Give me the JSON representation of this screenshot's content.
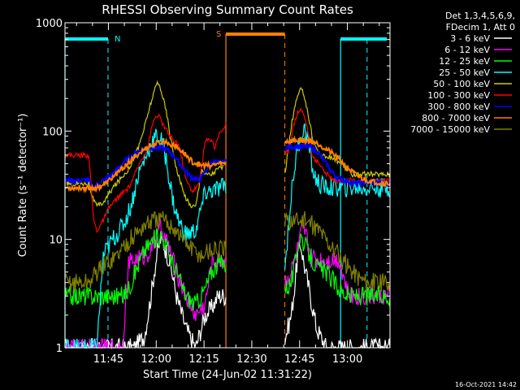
{
  "chart_data": {
    "type": "line",
    "title": "RHESSI Observing Summary Count Rates",
    "xlabel": "Start Time (24-Jun-02 11:31:22)",
    "ylabel": "Count Rate (s⁻¹ detector⁻¹)",
    "yscale": "log",
    "ylim": [
      1,
      1000
    ],
    "xlim_minutes": [
      0,
      102
    ],
    "y_ticks": [
      {
        "value": 1,
        "label": "1"
      },
      {
        "value": 10,
        "label": "10"
      },
      {
        "value": 100,
        "label": "100"
      },
      {
        "value": 1000,
        "label": "1000"
      }
    ],
    "x_ticks": [
      {
        "minute": 13.63,
        "label": "11:45"
      },
      {
        "minute": 28.63,
        "label": "12:00"
      },
      {
        "minute": 43.63,
        "label": "12:15"
      },
      {
        "minute": 58.63,
        "label": "12:30"
      },
      {
        "minute": 73.63,
        "label": "12:45"
      },
      {
        "minute": 88.63,
        "label": "13:00"
      }
    ],
    "legend_header": [
      "Det 1,3,4,5,6,9,",
      "FDecim 1, Att 0"
    ],
    "series": [
      {
        "name": "3 - 6 keV",
        "color": "#ffffff",
        "x": [
          0,
          10,
          18,
          22,
          25,
          27,
          28,
          29,
          30,
          31,
          33,
          35,
          38,
          41,
          44,
          46,
          48,
          50.5,
          69,
          71,
          72,
          73,
          74,
          75,
          77,
          79,
          82,
          86,
          89,
          95,
          100
        ],
        "y": [
          1,
          1,
          1,
          1,
          1.3,
          3,
          5,
          7.5,
          10,
          9,
          6,
          3,
          1.5,
          1,
          2,
          2.3,
          3,
          3,
          1.2,
          2,
          3.5,
          7,
          9,
          6,
          3,
          1.5,
          1,
          1,
          1,
          1,
          1
        ]
      },
      {
        "name": "6 - 12 keV",
        "color": "#ff00ff",
        "x": [
          0,
          18,
          20,
          22,
          25,
          27,
          29,
          30,
          31,
          33,
          35,
          38,
          41,
          44,
          46,
          48,
          50.5,
          69,
          71,
          72,
          73,
          74,
          75,
          76,
          77,
          79,
          82,
          86,
          89,
          95,
          100
        ],
        "y": [
          1,
          1,
          6,
          6.5,
          7,
          8,
          11,
          12.5,
          11,
          8,
          5,
          3,
          2,
          2.5,
          6,
          6.5,
          6.5,
          4,
          5,
          6.5,
          8,
          11,
          12,
          10,
          7,
          6.5,
          6.5,
          6.5,
          3,
          3,
          3
        ]
      },
      {
        "name": "12 - 25 keV",
        "color": "#00ff00",
        "x": [
          0,
          10,
          18,
          20,
          22,
          25,
          28,
          30,
          31,
          33,
          35,
          38,
          41,
          44,
          46,
          48,
          50.5,
          69,
          71,
          72,
          73,
          74,
          75,
          77,
          79,
          82,
          86,
          89,
          95,
          100
        ],
        "y": [
          3,
          3,
          3,
          3.5,
          5,
          8,
          10,
          11,
          10,
          7,
          5,
          3,
          2.5,
          3.5,
          5,
          6,
          6,
          3.5,
          4,
          5.5,
          9,
          11,
          9,
          7,
          5.5,
          5,
          3.5,
          3,
          3,
          3
        ]
      },
      {
        "name": "25 - 50 keV",
        "color": "#00ffff",
        "x": [
          0,
          10,
          12,
          13,
          15,
          17,
          19,
          21,
          23,
          25,
          27,
          28,
          29,
          30,
          31,
          32,
          33,
          34,
          35,
          36,
          38,
          41,
          44,
          46,
          48,
          50.5,
          69,
          70,
          71,
          72,
          73,
          74,
          75,
          76,
          77,
          78,
          79,
          80,
          82,
          85,
          88,
          91,
          94,
          97,
          100
        ],
        "y": [
          1,
          1,
          7,
          8,
          10,
          12,
          15,
          22,
          40,
          55,
          75,
          85,
          90,
          85,
          70,
          50,
          32,
          22,
          17,
          14,
          11,
          12,
          27,
          28,
          29,
          32,
          5,
          12,
          25,
          45,
          70,
          90,
          105,
          90,
          60,
          40,
          35,
          32,
          30,
          30,
          30,
          30,
          30,
          30,
          30
        ]
      },
      {
        "name": "50 - 100 keV",
        "color": "#cccc00",
        "x": [
          0,
          5,
          7.5,
          8.5,
          10,
          12,
          13,
          15,
          17,
          20,
          23,
          25,
          27,
          28,
          29,
          30,
          31,
          32,
          33,
          35,
          37,
          39,
          41,
          43,
          44,
          46,
          48,
          50.5,
          69,
          70,
          71,
          72,
          73,
          74,
          75,
          76,
          77,
          78,
          80,
          85,
          90,
          95,
          100
        ],
        "y": [
          33,
          33,
          33,
          25,
          20,
          22,
          24,
          30,
          35,
          45,
          70,
          110,
          185,
          230,
          280,
          250,
          190,
          140,
          90,
          45,
          28,
          21,
          20,
          45,
          40,
          40,
          45,
          48,
          40,
          65,
          110,
          160,
          210,
          240,
          220,
          160,
          110,
          80,
          60,
          55,
          40,
          40,
          40
        ]
      },
      {
        "name": "100 - 300 keV",
        "color": "#ff0000",
        "x": [
          0,
          5,
          7.5,
          9,
          10,
          12,
          14,
          17,
          20,
          22,
          24,
          26,
          27,
          28,
          29,
          30,
          31,
          32,
          33,
          34,
          35,
          36,
          37,
          38,
          40,
          42,
          44,
          46,
          47,
          48,
          50.5,
          69,
          70,
          71,
          72,
          73,
          74,
          75,
          76,
          77,
          78,
          80,
          82,
          85,
          88,
          90,
          93,
          96,
          100
        ],
        "y": [
          60,
          60,
          60,
          15,
          12,
          15,
          20,
          25,
          30,
          40,
          55,
          70,
          100,
          130,
          140,
          130,
          110,
          100,
          90,
          80,
          80,
          70,
          50,
          35,
          28,
          32,
          80,
          85,
          70,
          90,
          115,
          60,
          65,
          90,
          120,
          150,
          160,
          140,
          110,
          70,
          55,
          50,
          40,
          35,
          35,
          35,
          35,
          35,
          35
        ]
      },
      {
        "name": "300 - 800 keV",
        "color": "#0000ff",
        "x": [
          0,
          5,
          7.5,
          8.5,
          10,
          12,
          14,
          16,
          18,
          20,
          22,
          24,
          26,
          28,
          30,
          32,
          34,
          36,
          38,
          40,
          42,
          44,
          46,
          48,
          50.5,
          69,
          71,
          73,
          75,
          77,
          79,
          81,
          83,
          85,
          87,
          89,
          91,
          93,
          95,
          97,
          100
        ],
        "y": [
          35,
          35,
          35,
          30,
          32,
          35,
          38,
          43,
          50,
          56,
          62,
          67,
          70,
          70,
          70,
          67,
          60,
          50,
          42,
          37,
          35,
          42,
          52,
          51,
          52,
          70,
          72,
          72,
          72,
          72,
          65,
          55,
          45,
          38,
          36,
          34,
          33,
          33,
          34,
          33,
          33
        ]
      },
      {
        "name": "800 - 7000 keV",
        "color": "#ff8000",
        "x": [
          0,
          5,
          7.5,
          10,
          13,
          16,
          19,
          22,
          25,
          28,
          31,
          34,
          37,
          40,
          43,
          46,
          48,
          50.5,
          69,
          72,
          75,
          78,
          80,
          83,
          86,
          89,
          92,
          95,
          97,
          100
        ],
        "y": [
          30,
          30,
          30,
          30,
          33,
          40,
          48,
          58,
          68,
          76,
          80,
          75,
          64,
          52,
          48,
          48,
          50,
          50,
          80,
          82,
          82,
          80,
          75,
          65,
          55,
          45,
          38,
          35,
          34,
          33
        ]
      },
      {
        "name": "7000 - 15000 keV",
        "color": "#808000",
        "x": [
          0,
          5,
          7.5,
          10,
          13,
          16,
          19,
          22,
          25,
          28,
          31,
          34,
          37,
          40,
          43,
          44,
          46,
          48,
          50.5,
          69,
          71,
          73,
          75,
          77,
          80,
          83,
          86,
          89,
          92,
          95,
          100
        ],
        "y": [
          4,
          4,
          4,
          5,
          6,
          7,
          9,
          11,
          13.5,
          15,
          15,
          13,
          10,
          8,
          7,
          7.5,
          8,
          8,
          8,
          14,
          15,
          15,
          15,
          14,
          12,
          9,
          7,
          5.5,
          4.5,
          4,
          4
        ]
      }
    ],
    "annotations": [
      {
        "label": "N",
        "color": "#00ffff",
        "bar_from": 0,
        "bar_to": 13.5,
        "bar_from2": 86.5,
        "bar_to2": 101,
        "dashed_x": [
          13.5,
          94.8
        ],
        "solid_x": [
          0,
          86.5
        ]
      },
      {
        "label": "S",
        "color": "#ff8000",
        "bar_from": 50.5,
        "bar_to": 69,
        "dashed_x": [
          69
        ],
        "solid_x": [
          50.5
        ]
      }
    ],
    "timestamp": "16-Oct-2021 14:42"
  }
}
